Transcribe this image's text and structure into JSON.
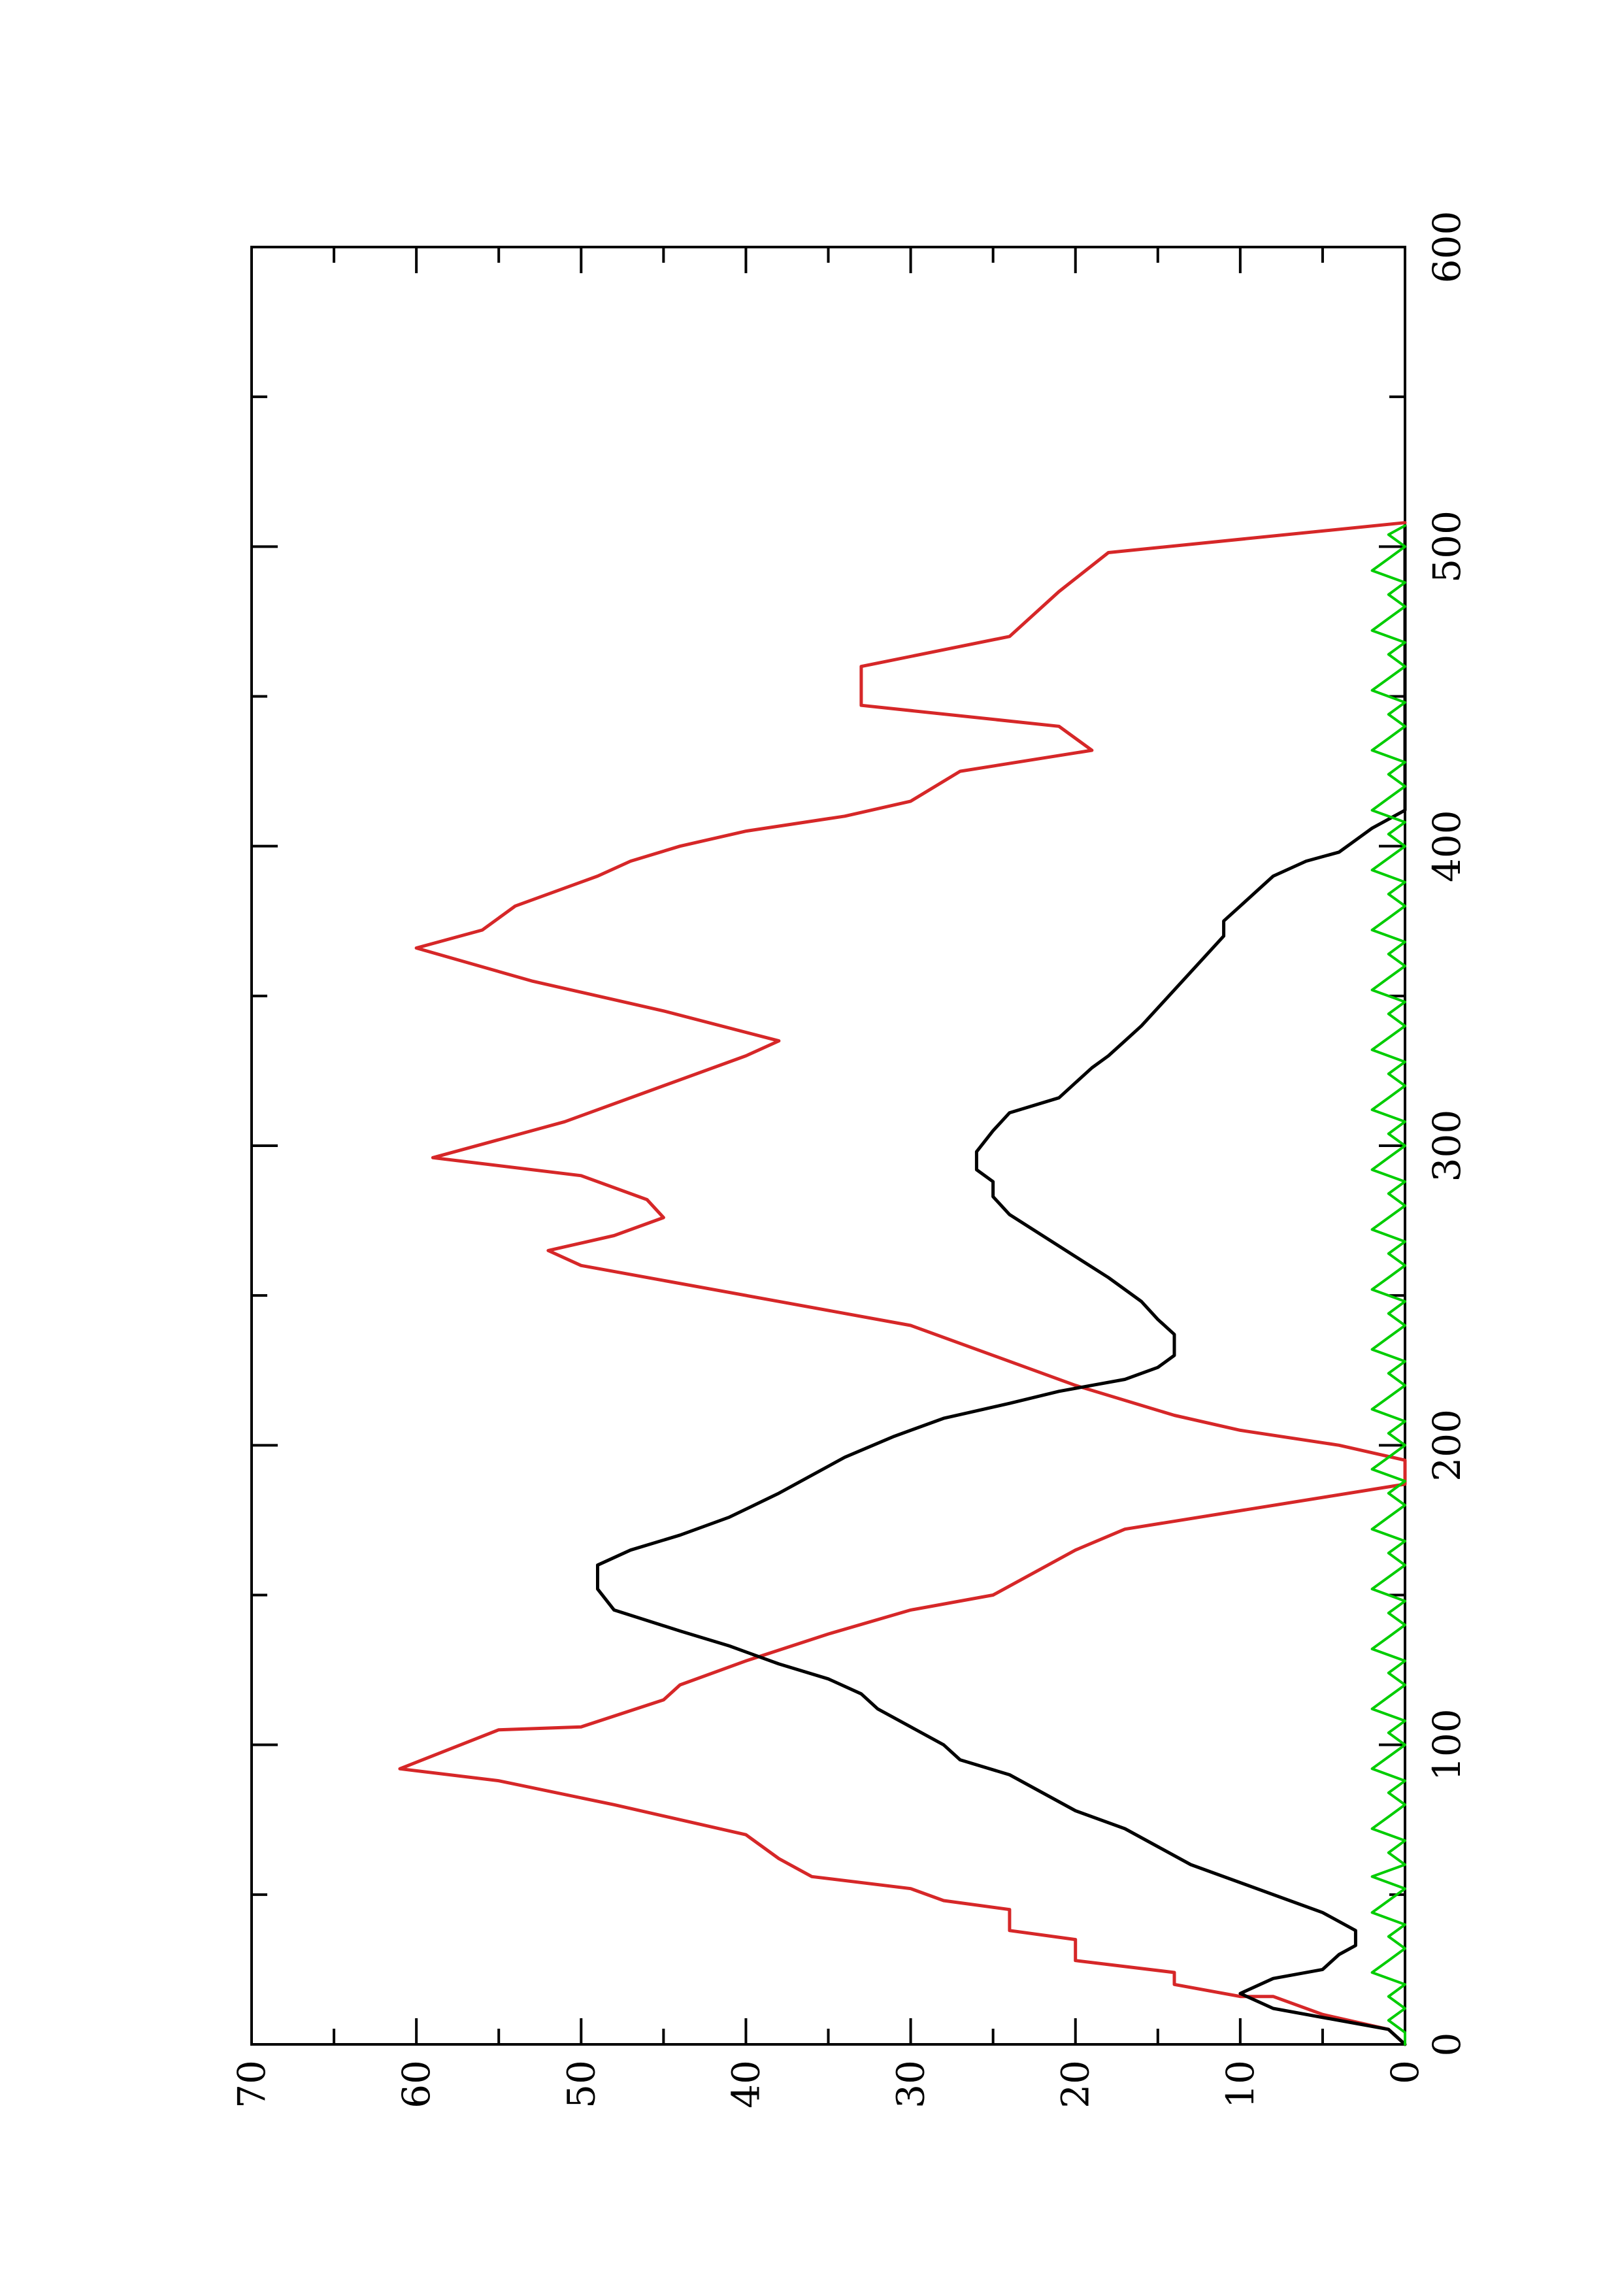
{
  "chart_data": {
    "type": "line",
    "orientation": "rotated-90-counterclockwise",
    "title": "",
    "xlabel": "",
    "ylabel": "",
    "xlim": [
      0,
      600
    ],
    "ylim": [
      0,
      70
    ],
    "grid": false,
    "legend": "none",
    "x_ticks": [
      {
        "value": 0,
        "label": "0"
      },
      {
        "value": 100,
        "label": "100"
      },
      {
        "value": 200,
        "label": "200"
      },
      {
        "value": 300,
        "label": "300"
      },
      {
        "value": 400,
        "label": "400"
      },
      {
        "value": 500,
        "label": "500"
      },
      {
        "value": 600,
        "label": "600"
      }
    ],
    "x_minor_ticks": [
      50,
      150,
      250,
      350,
      450,
      550
    ],
    "y_ticks": [
      {
        "value": 0,
        "label": "0"
      },
      {
        "value": 10,
        "label": "10"
      },
      {
        "value": 20,
        "label": "20"
      },
      {
        "value": 30,
        "label": "30"
      },
      {
        "value": 40,
        "label": "40"
      },
      {
        "value": 50,
        "label": "50"
      },
      {
        "value": 60,
        "label": "60"
      },
      {
        "value": 70,
        "label": "70"
      }
    ],
    "y_minor_ticks": [
      5,
      15,
      25,
      35,
      45,
      55,
      65
    ],
    "series": [
      {
        "color": "#d62728",
        "style": "step-segmented",
        "points": [
          [
            0,
            0
          ],
          [
            5,
            1
          ],
          [
            10,
            5
          ],
          [
            16,
            8
          ],
          [
            16,
            10
          ],
          [
            20,
            14
          ],
          [
            24,
            14
          ],
          [
            28,
            20
          ],
          [
            35,
            20
          ],
          [
            38,
            24
          ],
          [
            45,
            24
          ],
          [
            48,
            28
          ],
          [
            52,
            30
          ],
          [
            56,
            36
          ],
          [
            62,
            38
          ],
          [
            70,
            40
          ],
          [
            80,
            48
          ],
          [
            88,
            55
          ],
          [
            92,
            61
          ],
          [
            105,
            55
          ],
          [
            106,
            50
          ],
          [
            115,
            45
          ],
          [
            120,
            44
          ],
          [
            128,
            40
          ],
          [
            137,
            35
          ],
          [
            145,
            30
          ],
          [
            150,
            25
          ],
          [
            165,
            20
          ],
          [
            172,
            17
          ],
          [
            187,
            0
          ],
          [
            195,
            0
          ],
          [
            200,
            4
          ],
          [
            205,
            10
          ],
          [
            210,
            14
          ],
          [
            220,
            20
          ],
          [
            230,
            25
          ],
          [
            240,
            30
          ],
          [
            248,
            38
          ],
          [
            255,
            45
          ],
          [
            260,
            50
          ],
          [
            265,
            52
          ],
          [
            270,
            48
          ],
          [
            276,
            45
          ],
          [
            282,
            46
          ],
          [
            290,
            50
          ],
          [
            296,
            59
          ],
          [
            305,
            53
          ],
          [
            308,
            51
          ],
          [
            318,
            46
          ],
          [
            330,
            40
          ],
          [
            335,
            38
          ],
          [
            345,
            45
          ],
          [
            355,
            53
          ],
          [
            366,
            60
          ],
          [
            372,
            56
          ],
          [
            380,
            54
          ],
          [
            390,
            49
          ],
          [
            395,
            47
          ],
          [
            400,
            44
          ],
          [
            405,
            40
          ],
          [
            410,
            34
          ],
          [
            415,
            30
          ],
          [
            425,
            27
          ],
          [
            432,
            19
          ],
          [
            440,
            21
          ],
          [
            447,
            33
          ],
          [
            460,
            33
          ],
          [
            470,
            24
          ],
          [
            485,
            21
          ],
          [
            498,
            18
          ],
          [
            508,
            0
          ]
        ]
      },
      {
        "color": "#000000",
        "style": "line",
        "points": [
          [
            0,
            0
          ],
          [
            5,
            1
          ],
          [
            12,
            8
          ],
          [
            17,
            10
          ],
          [
            22,
            8
          ],
          [
            25,
            5
          ],
          [
            30,
            4
          ],
          [
            33,
            3
          ],
          [
            38,
            3
          ],
          [
            44,
            5
          ],
          [
            48,
            7
          ],
          [
            54,
            10
          ],
          [
            60,
            13
          ],
          [
            66,
            15
          ],
          [
            72,
            17
          ],
          [
            78,
            20
          ],
          [
            84,
            22
          ],
          [
            90,
            24
          ],
          [
            95,
            27
          ],
          [
            100,
            28
          ],
          [
            106,
            30
          ],
          [
            112,
            32
          ],
          [
            117,
            33
          ],
          [
            122,
            35
          ],
          [
            127,
            38
          ],
          [
            133,
            41
          ],
          [
            138,
            44
          ],
          [
            145,
            48
          ],
          [
            152,
            49
          ],
          [
            160,
            49
          ],
          [
            165,
            47
          ],
          [
            170,
            44
          ],
          [
            176,
            41
          ],
          [
            184,
            38
          ],
          [
            190,
            36
          ],
          [
            196,
            34
          ],
          [
            203,
            31
          ],
          [
            209,
            28
          ],
          [
            214,
            24
          ],
          [
            218,
            21
          ],
          [
            222,
            17
          ],
          [
            226,
            15
          ],
          [
            230,
            14
          ],
          [
            233,
            14
          ],
          [
            237,
            14
          ],
          [
            242,
            15
          ],
          [
            248,
            16
          ],
          [
            256,
            18
          ],
          [
            263,
            20
          ],
          [
            270,
            22
          ],
          [
            277,
            24
          ],
          [
            283,
            25
          ],
          [
            288,
            25
          ],
          [
            292,
            26
          ],
          [
            298,
            26
          ],
          [
            305,
            25
          ],
          [
            311,
            24
          ],
          [
            316,
            21
          ],
          [
            321,
            20
          ],
          [
            326,
            19
          ],
          [
            330,
            18
          ],
          [
            335,
            17
          ],
          [
            340,
            16
          ],
          [
            346,
            15
          ],
          [
            352,
            14
          ],
          [
            358,
            13
          ],
          [
            364,
            12
          ],
          [
            370,
            11
          ],
          [
            375,
            11
          ],
          [
            380,
            10
          ],
          [
            385,
            9
          ],
          [
            390,
            8
          ],
          [
            395,
            6
          ],
          [
            398,
            4
          ],
          [
            402,
            3
          ],
          [
            406,
            2
          ],
          [
            409,
            1
          ],
          [
            412,
            0
          ],
          [
            415,
            0
          ],
          [
            418,
            0
          ],
          [
            422,
            0
          ],
          [
            426,
            0
          ],
          [
            430,
            0
          ],
          [
            434,
            0
          ],
          [
            438,
            0
          ],
          [
            442,
            0
          ],
          [
            446,
            0
          ],
          [
            450,
            0
          ],
          [
            454,
            0
          ],
          [
            458,
            0
          ],
          [
            462,
            0
          ],
          [
            466,
            0
          ],
          [
            470,
            0
          ],
          [
            474,
            0
          ],
          [
            478,
            0
          ],
          [
            482,
            0
          ],
          [
            486,
            0
          ],
          [
            490,
            0
          ],
          [
            494,
            0
          ],
          [
            498,
            0
          ],
          [
            503,
            0
          ],
          [
            507,
            0
          ]
        ]
      },
      {
        "color": "#00cc00",
        "style": "line",
        "points": [
          [
            0,
            0
          ],
          [
            4,
            0
          ],
          [
            8,
            1
          ],
          [
            12,
            0
          ],
          [
            16,
            1
          ],
          [
            20,
            0
          ],
          [
            24,
            2
          ],
          [
            28,
            1
          ],
          [
            32,
            0
          ],
          [
            36,
            1
          ],
          [
            40,
            0
          ],
          [
            44,
            2
          ],
          [
            48,
            1
          ],
          [
            52,
            0
          ],
          [
            56,
            2
          ],
          [
            60,
            0
          ],
          [
            64,
            1
          ],
          [
            68,
            0
          ],
          [
            72,
            2
          ],
          [
            76,
            1
          ],
          [
            80,
            0
          ],
          [
            84,
            1
          ],
          [
            88,
            0
          ],
          [
            92,
            2
          ],
          [
            96,
            1
          ],
          [
            100,
            0
          ],
          [
            104,
            1
          ],
          [
            108,
            0
          ],
          [
            112,
            2
          ],
          [
            116,
            1
          ],
          [
            120,
            0
          ],
          [
            124,
            1
          ],
          [
            128,
            0
          ],
          [
            132,
            2
          ],
          [
            136,
            1
          ],
          [
            140,
            0
          ],
          [
            144,
            1
          ],
          [
            148,
            0
          ],
          [
            152,
            2
          ],
          [
            156,
            1
          ],
          [
            160,
            0
          ],
          [
            164,
            1
          ],
          [
            168,
            0
          ],
          [
            172,
            2
          ],
          [
            176,
            1
          ],
          [
            180,
            0
          ],
          [
            184,
            1
          ],
          [
            188,
            0
          ],
          [
            192,
            2
          ],
          [
            196,
            1
          ],
          [
            200,
            0
          ],
          [
            204,
            1
          ],
          [
            208,
            0
          ],
          [
            212,
            2
          ],
          [
            216,
            1
          ],
          [
            220,
            0
          ],
          [
            224,
            1
          ],
          [
            228,
            0
          ],
          [
            232,
            2
          ],
          [
            236,
            1
          ],
          [
            240,
            0
          ],
          [
            244,
            1
          ],
          [
            248,
            0
          ],
          [
            252,
            2
          ],
          [
            256,
            1
          ],
          [
            260,
            0
          ],
          [
            264,
            1
          ],
          [
            268,
            0
          ],
          [
            272,
            2
          ],
          [
            276,
            1
          ],
          [
            280,
            0
          ],
          [
            284,
            1
          ],
          [
            288,
            0
          ],
          [
            292,
            2
          ],
          [
            296,
            1
          ],
          [
            300,
            0
          ],
          [
            304,
            1
          ],
          [
            308,
            0
          ],
          [
            312,
            2
          ],
          [
            316,
            1
          ],
          [
            320,
            0
          ],
          [
            324,
            1
          ],
          [
            328,
            0
          ],
          [
            332,
            2
          ],
          [
            336,
            1
          ],
          [
            340,
            0
          ],
          [
            344,
            1
          ],
          [
            348,
            0
          ],
          [
            352,
            2
          ],
          [
            356,
            1
          ],
          [
            360,
            0
          ],
          [
            364,
            1
          ],
          [
            368,
            0
          ],
          [
            372,
            2
          ],
          [
            376,
            1
          ],
          [
            380,
            0
          ],
          [
            384,
            1
          ],
          [
            388,
            0
          ],
          [
            392,
            2
          ],
          [
            396,
            1
          ],
          [
            400,
            0
          ],
          [
            404,
            1
          ],
          [
            408,
            0
          ],
          [
            412,
            2
          ],
          [
            416,
            1
          ],
          [
            420,
            0
          ],
          [
            424,
            1
          ],
          [
            428,
            0
          ],
          [
            432,
            2
          ],
          [
            436,
            1
          ],
          [
            440,
            0
          ],
          [
            444,
            1
          ],
          [
            448,
            0
          ],
          [
            452,
            2
          ],
          [
            456,
            1
          ],
          [
            460,
            0
          ],
          [
            464,
            1
          ],
          [
            468,
            0
          ],
          [
            472,
            2
          ],
          [
            476,
            1
          ],
          [
            480,
            0
          ],
          [
            484,
            1
          ],
          [
            488,
            0
          ],
          [
            492,
            2
          ],
          [
            496,
            1
          ],
          [
            500,
            0
          ],
          [
            504,
            1
          ],
          [
            507,
            0
          ]
        ]
      }
    ]
  }
}
